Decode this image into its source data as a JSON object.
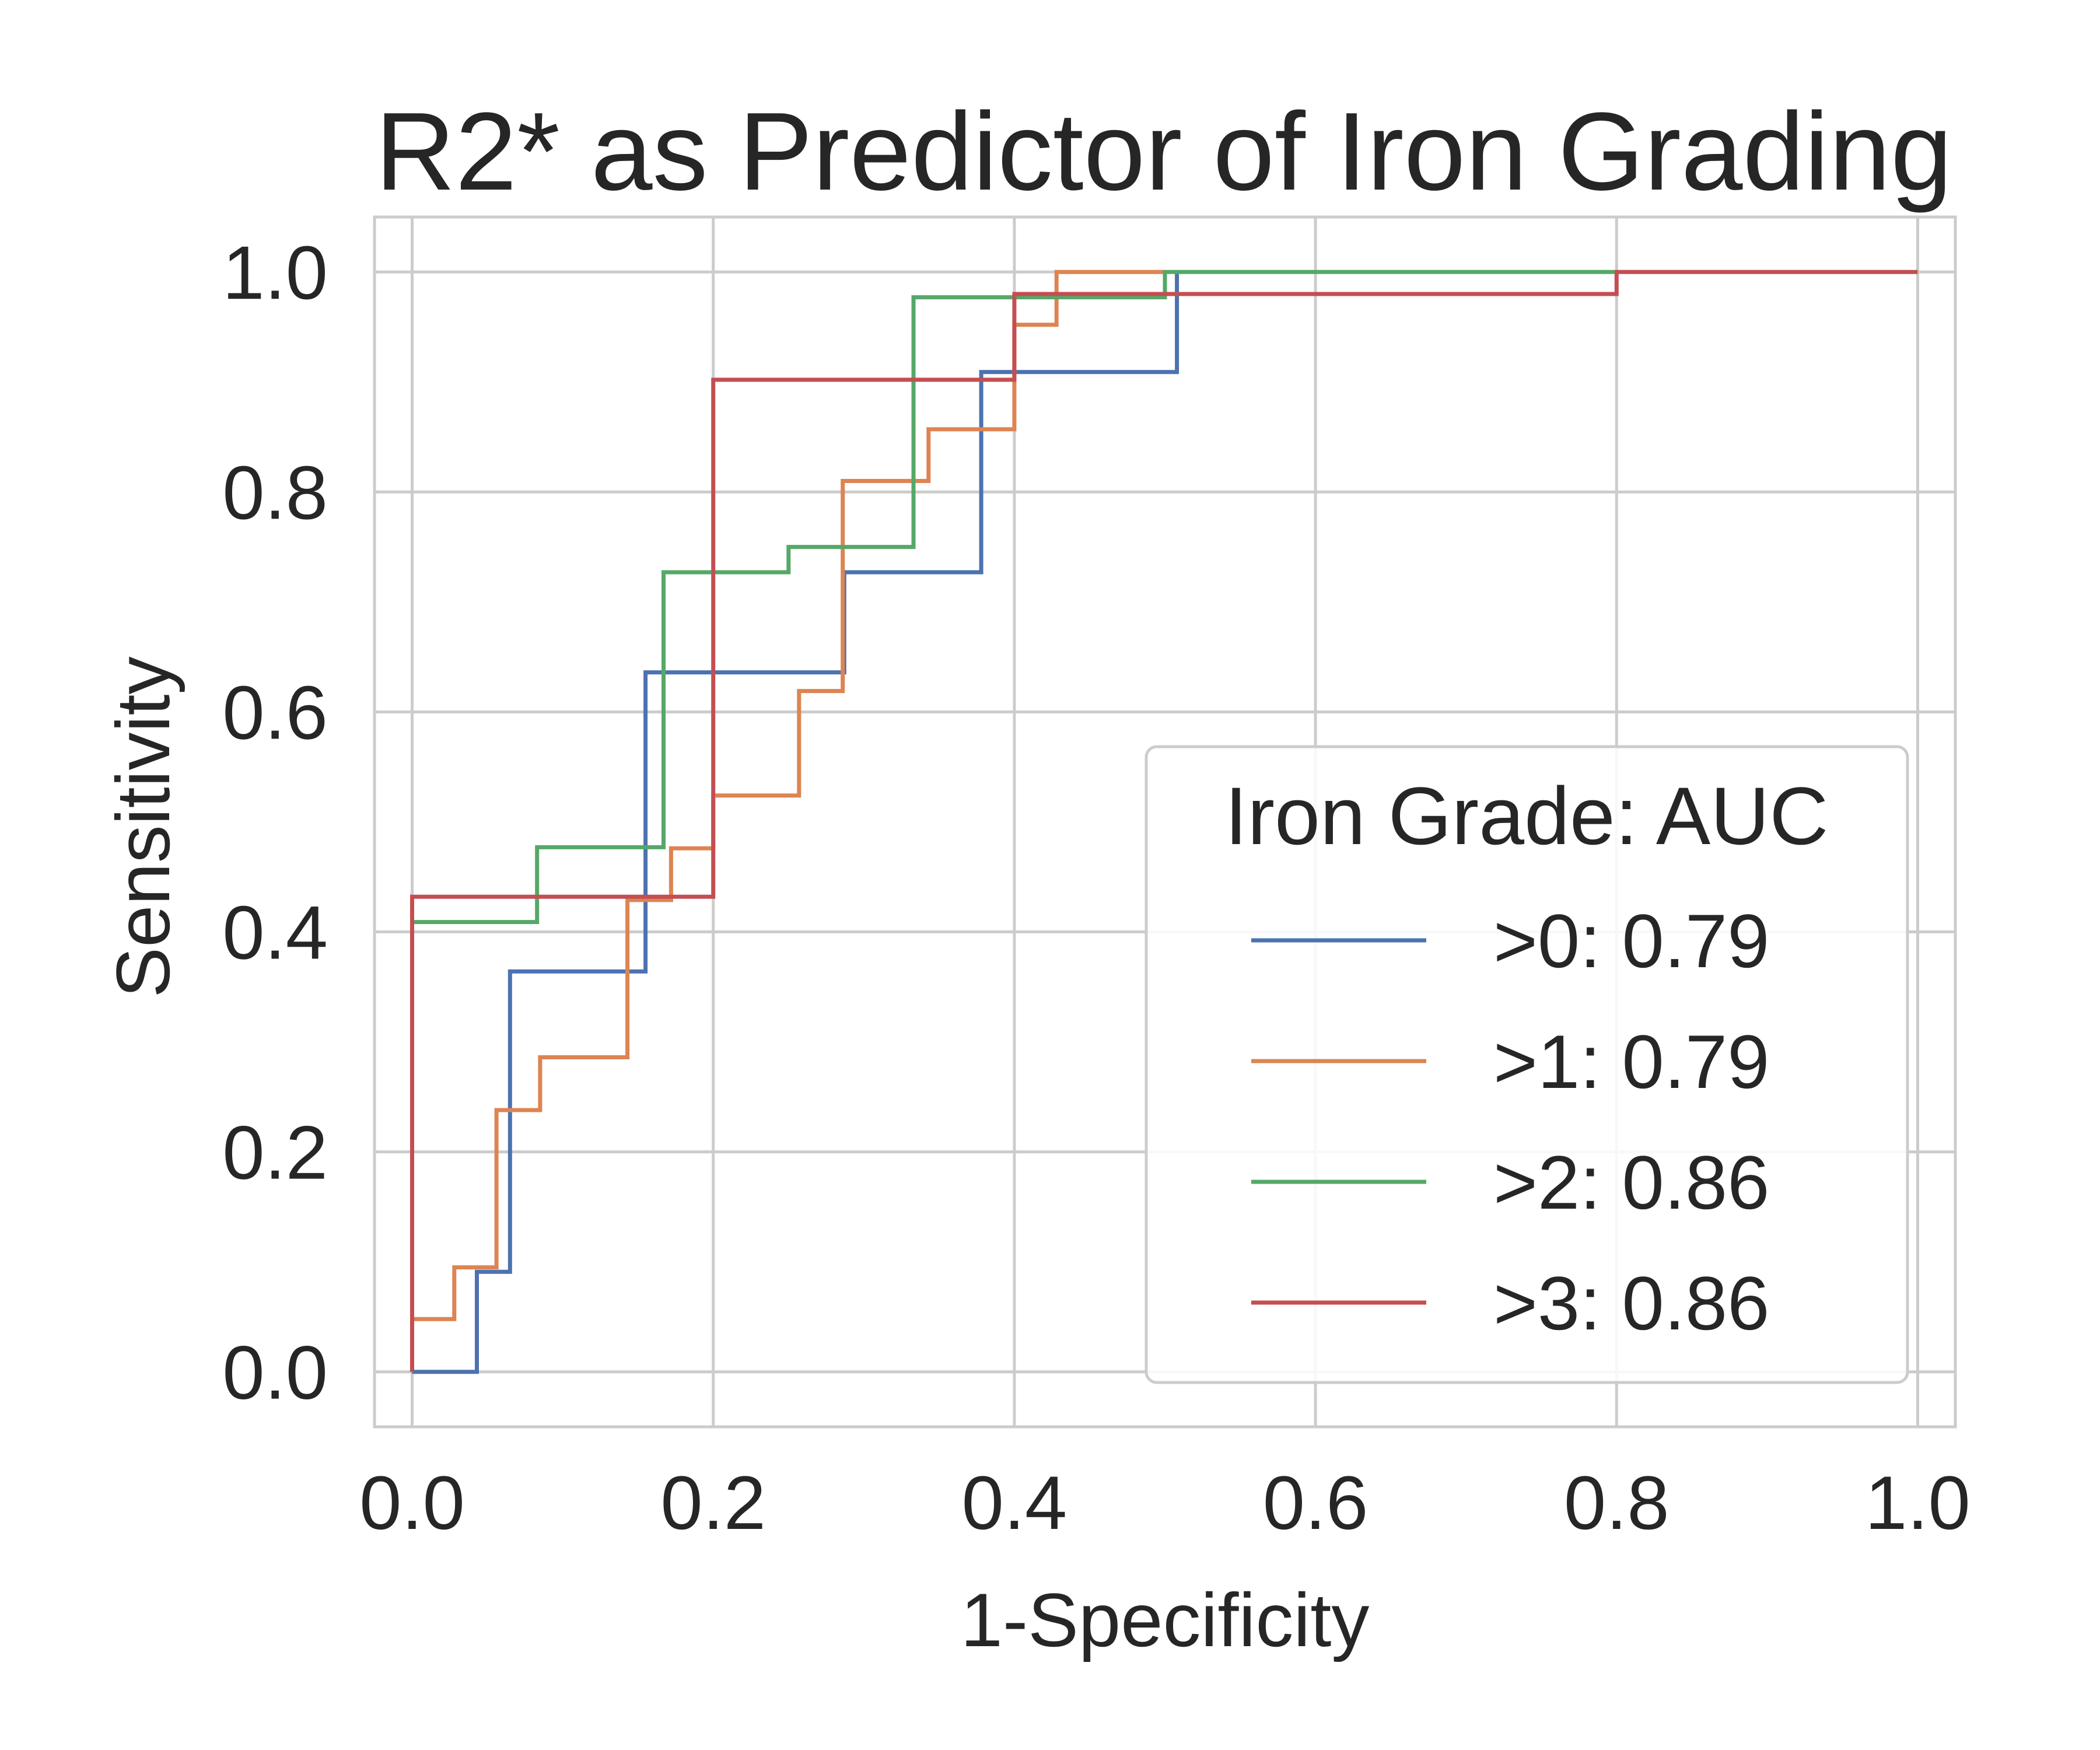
{
  "chart_data": {
    "type": "line",
    "title": "R2* as Predictor of Iron Grading",
    "xlabel": "1-Specificity",
    "ylabel": "Sensitivity",
    "xlim": [
      -0.025,
      1.025
    ],
    "ylim": [
      -0.05,
      1.05
    ],
    "xticks": [
      0.0,
      0.2,
      0.4,
      0.6,
      0.8,
      1.0
    ],
    "yticks": [
      0.0,
      0.2,
      0.4,
      0.6,
      0.8,
      1.0
    ],
    "xtick_labels": [
      "0.0",
      "0.2",
      "0.4",
      "0.6",
      "0.8",
      "1.0"
    ],
    "ytick_labels": [
      "0.0",
      "0.2",
      "0.4",
      "0.6",
      "0.8",
      "1.0"
    ],
    "grid": true,
    "legend_title": "Iron Grade: AUC",
    "legend_position": "lower-right",
    "series": [
      {
        "name": ">0: 0.79",
        "color": "#4c72b0",
        "x": [
          0.0,
          0.0,
          0.043,
          0.043,
          0.065,
          0.065,
          0.155,
          0.155,
          0.287,
          0.287,
          0.378,
          0.378,
          0.508,
          0.508
        ],
        "y": [
          0.0,
          0.0,
          0.0,
          0.091,
          0.091,
          0.364,
          0.364,
          0.636,
          0.636,
          0.727,
          0.727,
          0.909,
          0.909,
          1.0
        ]
      },
      {
        "name": ">1: 0.79",
        "color": "#dd8452",
        "x": [
          0.0,
          0.0,
          0.028,
          0.028,
          0.056,
          0.056,
          0.085,
          0.085,
          0.143,
          0.143,
          0.172,
          0.172,
          0.2,
          0.2,
          0.257,
          0.257,
          0.286,
          0.286,
          0.343,
          0.343,
          0.4,
          0.4,
          0.428,
          0.428,
          0.5
        ],
        "y": [
          0.0,
          0.048,
          0.048,
          0.095,
          0.095,
          0.238,
          0.238,
          0.286,
          0.286,
          0.429,
          0.429,
          0.476,
          0.476,
          0.524,
          0.524,
          0.619,
          0.619,
          0.81,
          0.81,
          0.857,
          0.857,
          0.952,
          0.952,
          1.0,
          1.0
        ]
      },
      {
        "name": ">2: 0.86",
        "color": "#55a868",
        "x": [
          0.0,
          0.0,
          0.083,
          0.083,
          0.167,
          0.167,
          0.25,
          0.25,
          0.333,
          0.333,
          0.5,
          0.5,
          0.8
        ],
        "y": [
          0.0,
          0.409,
          0.409,
          0.477,
          0.477,
          0.727,
          0.727,
          0.75,
          0.75,
          0.977,
          0.977,
          1.0,
          1.0
        ]
      },
      {
        "name": ">3: 0.86",
        "color": "#c44e52",
        "x": [
          0.0,
          0.0,
          0.2,
          0.2,
          0.4,
          0.4,
          0.8,
          0.8,
          1.0
        ],
        "y": [
          0.0,
          0.432,
          0.432,
          0.902,
          0.902,
          0.98,
          0.98,
          1.0,
          1.0
        ]
      }
    ]
  }
}
